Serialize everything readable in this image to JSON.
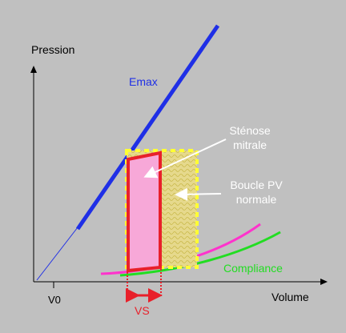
{
  "labels": {
    "y_axis": "Pression",
    "x_axis": "Volume",
    "v0": "V0",
    "emax": "Emax",
    "stenose_line1": "Sténose",
    "stenose_line2": "mitrale",
    "boucle_line1": "Boucle PV",
    "boucle_line2": "normale",
    "compliance": "Compliance",
    "vs": "VS"
  },
  "colors": {
    "background": "#c0c0c0",
    "axis": "#000000",
    "emax": "#1f2fe6",
    "stenose_fill": "#f7a8d8",
    "stenose_border": "#e8202a",
    "normal_loop_border": "#ffff33",
    "normal_loop_fill": "#e6d98c",
    "compliance_green": "#22dd22",
    "compliance_magenta": "#ff33cc",
    "vs_arrow": "#e8202a",
    "annotation_arrow": "#ffffff"
  }
}
